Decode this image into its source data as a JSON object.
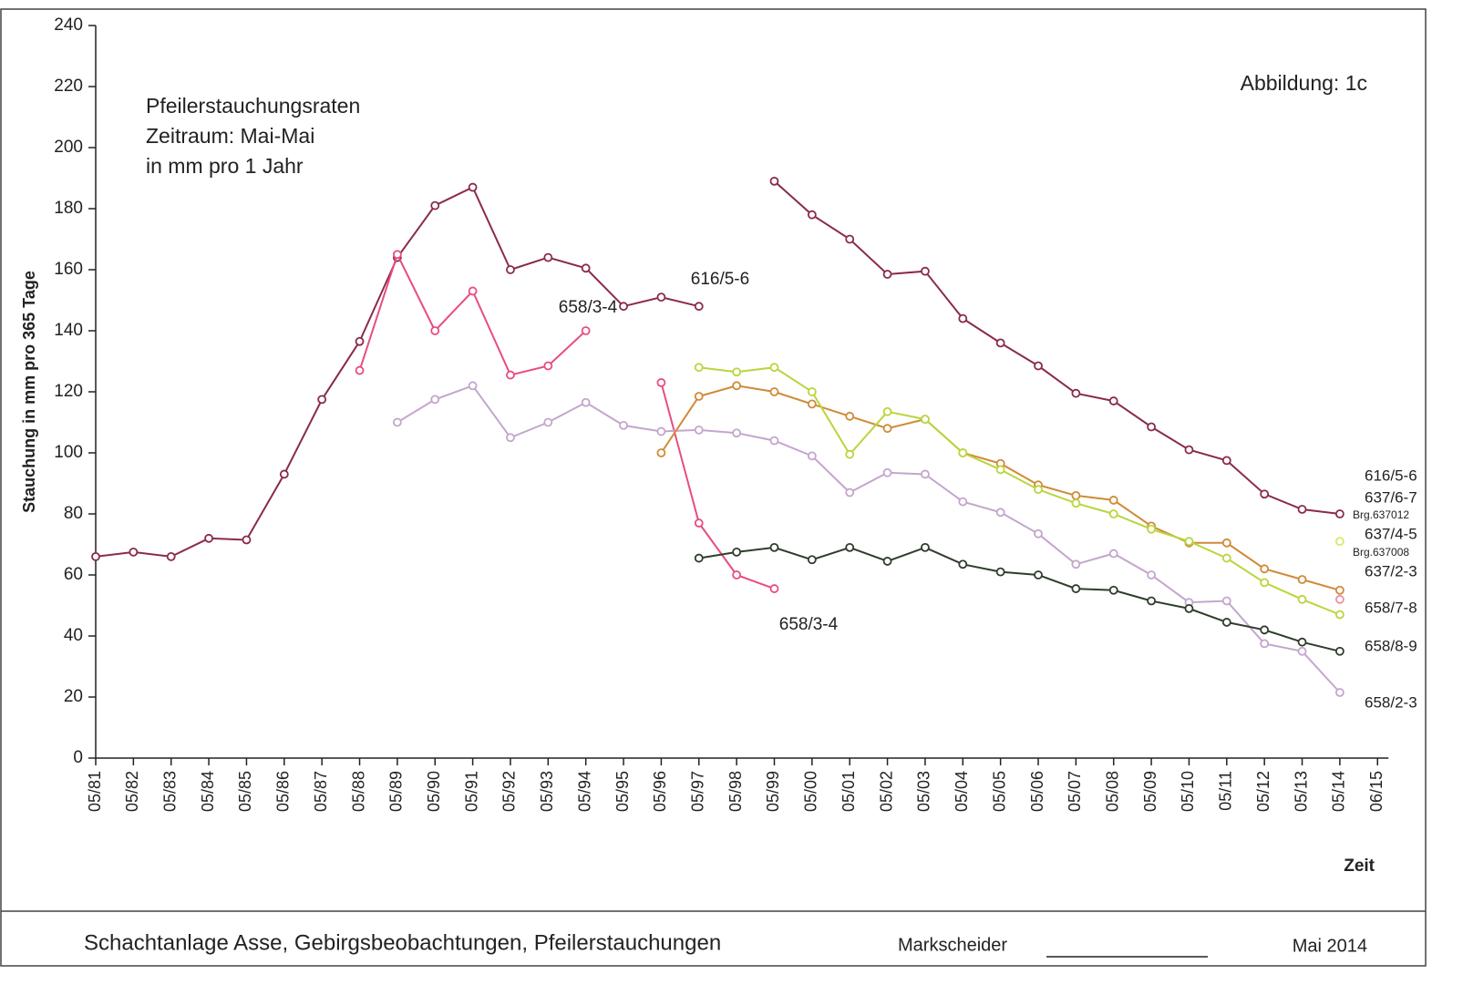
{
  "chart_data": {
    "type": "line",
    "title": [
      "Pfeilerstauchungsraten",
      "Zeitraum: Mai-Mai",
      "in mm pro 1 Jahr"
    ],
    "figure_label": "Abbildung:  1c",
    "y_label": "Stauchung in mm pro 365 Tage",
    "x_label": "Zeit",
    "footer": {
      "title": "Schachtanlage Asse, Gebirgsbeobachtungen, Pfeilerstauchungen",
      "signer": "Markscheider",
      "date": "Mai 2014"
    },
    "categories": [
      "05/81",
      "05/82",
      "05/83",
      "05/84",
      "05/85",
      "05/86",
      "05/87",
      "05/88",
      "05/89",
      "05/90",
      "05/91",
      "05/92",
      "05/93",
      "05/94",
      "05/95",
      "05/96",
      "05/97",
      "05/98",
      "05/99",
      "05/00",
      "05/01",
      "05/02",
      "05/03",
      "05/04",
      "05/05",
      "05/06",
      "05/07",
      "05/08",
      "05/09",
      "05/10",
      "05/11",
      "05/12",
      "05/13",
      "05/14",
      "06/15"
    ],
    "ylim": [
      0,
      240
    ],
    "yticks": [
      0,
      20,
      40,
      60,
      80,
      100,
      120,
      140,
      160,
      180,
      200,
      220,
      240
    ],
    "grid": false,
    "series": [
      {
        "name": "616/5-6",
        "color": "#8a2a4e",
        "values": [
          66,
          67.5,
          66,
          72,
          71.5,
          93,
          117.5,
          136.5,
          164,
          181,
          187,
          160,
          164,
          160.5,
          148,
          151,
          148,
          null,
          189,
          178,
          170,
          158.5,
          159.5,
          144,
          136,
          128.5,
          119.5,
          117,
          108.5,
          101,
          97.5,
          86.5,
          81.5,
          80,
          null
        ]
      },
      {
        "name": "658/3-4",
        "color": "#e84c82",
        "values": [
          null,
          null,
          null,
          null,
          null,
          null,
          null,
          127,
          165,
          140,
          153,
          125.5,
          128.5,
          140,
          null,
          123,
          77,
          60,
          55.5,
          null,
          null,
          null,
          null,
          null,
          null,
          null,
          null,
          null,
          null,
          null,
          null,
          null,
          null,
          null,
          null
        ]
      },
      {
        "name": "658/2-3",
        "color": "#c4a6cc",
        "values": [
          null,
          null,
          null,
          null,
          null,
          null,
          null,
          null,
          110,
          117.5,
          122,
          105,
          110,
          116.5,
          109,
          107,
          107.5,
          106.5,
          104,
          99,
          87,
          93.5,
          93,
          84,
          80.5,
          73.5,
          63.5,
          67,
          60,
          51,
          51.5,
          37.5,
          35,
          21.5,
          null
        ]
      },
      {
        "name": "637/2-3",
        "color": "#d08a36",
        "values": [
          null,
          null,
          null,
          null,
          null,
          null,
          null,
          null,
          null,
          null,
          null,
          null,
          null,
          null,
          null,
          100,
          118.5,
          122,
          120,
          116,
          112,
          108,
          111,
          100,
          96.5,
          89.5,
          86,
          84.5,
          76,
          70.5,
          70.5,
          62,
          58.5,
          55,
          null
        ]
      },
      {
        "name": "658/7-8",
        "color": "#b8d63c",
        "values": [
          null,
          null,
          null,
          null,
          null,
          null,
          null,
          null,
          null,
          null,
          null,
          null,
          null,
          null,
          null,
          null,
          128,
          126.5,
          128,
          120,
          99.5,
          113.5,
          111,
          100,
          94.5,
          88,
          83.5,
          80,
          75,
          71,
          65.5,
          57.5,
          52,
          47,
          null
        ]
      },
      {
        "name": "658/8-9",
        "color": "#2f3d2c",
        "values": [
          null,
          null,
          null,
          null,
          null,
          null,
          null,
          null,
          null,
          null,
          null,
          null,
          null,
          null,
          null,
          null,
          65.5,
          67.5,
          69,
          65,
          69,
          64.5,
          69,
          63.5,
          61,
          60,
          55.5,
          55,
          51.5,
          49,
          44.5,
          42,
          38,
          35,
          null
        ]
      },
      {
        "name": "637/6-7",
        "color": "#d8e86a",
        "values": [
          null,
          null,
          null,
          null,
          null,
          null,
          null,
          null,
          null,
          null,
          null,
          null,
          null,
          null,
          null,
          null,
          null,
          null,
          null,
          null,
          null,
          null,
          null,
          null,
          null,
          null,
          null,
          null,
          null,
          null,
          null,
          null,
          null,
          71,
          null
        ]
      },
      {
        "name": "637/4-5",
        "color": "#ec8fa6",
        "values": [
          null,
          null,
          null,
          null,
          null,
          null,
          null,
          null,
          null,
          null,
          null,
          null,
          null,
          null,
          null,
          null,
          null,
          null,
          null,
          null,
          null,
          null,
          null,
          null,
          null,
          null,
          null,
          null,
          null,
          null,
          null,
          null,
          null,
          52,
          null
        ]
      }
    ],
    "annotations": [
      "616/5-6",
      "658/3-4",
      "658/3-4",
      "Brg.637012",
      "Brg.637008"
    ]
  }
}
